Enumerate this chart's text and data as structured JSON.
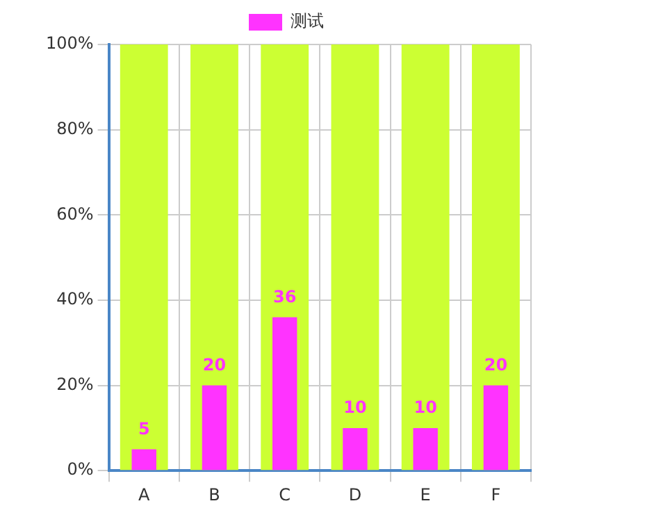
{
  "chart_data": {
    "type": "bar",
    "categories": [
      "A",
      "B",
      "C",
      "D",
      "E",
      "F"
    ],
    "series": [
      {
        "name": "测试",
        "color": "#ff33ff",
        "values": [
          5,
          20,
          36,
          10,
          10,
          20
        ],
        "value_labels": [
          "5",
          "20",
          "36",
          "10",
          "10",
          "20"
        ]
      },
      {
        "color": "#ccff33",
        "values": [
          100,
          100,
          100,
          100,
          100,
          100
        ]
      }
    ],
    "ylim": [
      0,
      100
    ],
    "yticks": [
      {
        "value": 0,
        "label": "0%"
      },
      {
        "value": 20,
        "label": "20%"
      },
      {
        "value": 40,
        "label": "40%"
      },
      {
        "value": 60,
        "label": "60%"
      },
      {
        "value": 80,
        "label": "80%"
      },
      {
        "value": 100,
        "label": "100%"
      }
    ],
    "grid": true,
    "legend": "top"
  }
}
